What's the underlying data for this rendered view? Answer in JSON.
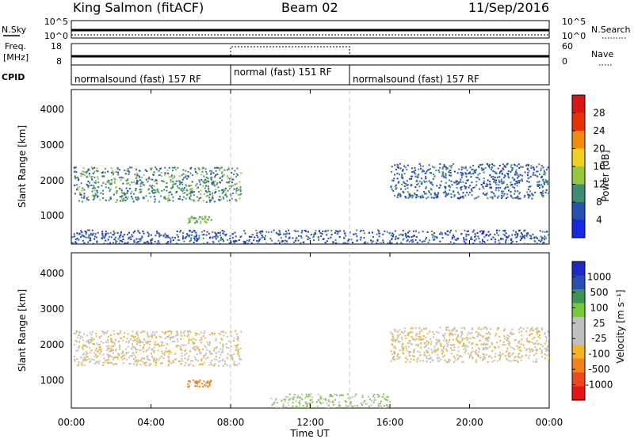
{
  "header": {
    "station": "King Salmon (fitACF)",
    "beam": "Beam 02",
    "date": "11/Sep/2016"
  },
  "status_panels": {
    "nsky_label": "N.Sky",
    "nsky_ticks": [
      "10^5",
      "10^0"
    ],
    "nsearch_label": "N.Search",
    "nsearch_ticks": [
      "10^5",
      "10^0"
    ],
    "freq_label_1": "Freq.",
    "freq_label_2": "[MHz]",
    "freq_ticks": [
      "18",
      "8"
    ],
    "nave_label": "Nave",
    "nave_ticks": [
      "60",
      "0"
    ],
    "cpid_label": "CPID",
    "cpid_segments": [
      {
        "label": "normalsound (fast) 157 RF",
        "start_hour": 0,
        "end_hour": 8
      },
      {
        "label": "normal (fast) 151 RF",
        "start_hour": 8,
        "end_hour": 14
      },
      {
        "label": "normalsound (fast) 157 RF",
        "start_hour": 14,
        "end_hour": 24
      }
    ]
  },
  "power_panel": {
    "ylabel": "Slant Range [km]",
    "yticks": [
      "1000",
      "2000",
      "3000",
      "4000"
    ],
    "colorbar_label": "Power [dB]",
    "colorbar_ticks": [
      "4",
      "8",
      "12",
      "16",
      "20",
      "24",
      "28"
    ],
    "colorbar_colors": [
      "#1428e6",
      "#2850b4",
      "#3c8c78",
      "#96c83c",
      "#f0d21e",
      "#f08c0a",
      "#e63200",
      "#dc1414"
    ]
  },
  "velocity_panel": {
    "ylabel": "Slant Range [km]",
    "yticks": [
      "1000",
      "2000",
      "3000",
      "4000"
    ],
    "colorbar_label": "Velocity [m s⁻¹]",
    "colorbar_ticks": [
      "-1000",
      "-500",
      "-100",
      "-25",
      "25",
      "100",
      "500",
      "1000"
    ],
    "colorbar_colors": [
      "#e61414",
      "#f0461e",
      "#f0821e",
      "#f5b41e",
      "#c0c0c0",
      "#c0c0c0",
      "#78c83c",
      "#3c9650",
      "#2850b4",
      "#1e28c8"
    ]
  },
  "xaxis": {
    "label": "Time UT",
    "ticks": [
      "00:00",
      "04:00",
      "08:00",
      "12:00",
      "16:00",
      "20:00",
      "00:00"
    ]
  },
  "chart_data": {
    "type": "heatmap",
    "title": "King Salmon (fitACF)  Beam 02  11/Sep/2016",
    "xlabel": "Time UT",
    "ylabel": "Slant Range [km]",
    "xlim": [
      "00:00",
      "24:00"
    ],
    "ylim": [
      180,
      4600
    ],
    "power_echo_regions": [
      {
        "t_start": 0.1,
        "t_end": 8.5,
        "range_start": 1400,
        "range_end": 2400,
        "power_db": 10
      },
      {
        "t_start": 5.8,
        "t_end": 7.0,
        "range_start": 800,
        "range_end": 1000,
        "power_db": 12
      },
      {
        "t_start": 16.0,
        "t_end": 24.0,
        "range_start": 1500,
        "range_end": 2500,
        "power_db": 7
      },
      {
        "t_start": 0.0,
        "t_end": 24.0,
        "range_start": 200,
        "range_end": 600,
        "power_db": 6
      }
    ],
    "velocity_echo_regions": [
      {
        "t_start": 0.1,
        "t_end": 8.5,
        "range_start": 1400,
        "range_end": 2400,
        "velocity": 0
      },
      {
        "t_start": 5.8,
        "t_end": 7.0,
        "range_start": 800,
        "range_end": 1000,
        "velocity": -200
      },
      {
        "t_start": 16.0,
        "t_end": 24.0,
        "range_start": 1500,
        "range_end": 2500,
        "velocity": 0
      },
      {
        "t_start": 10.0,
        "t_end": 16.0,
        "range_start": 200,
        "range_end": 600,
        "velocity": 100
      }
    ]
  }
}
